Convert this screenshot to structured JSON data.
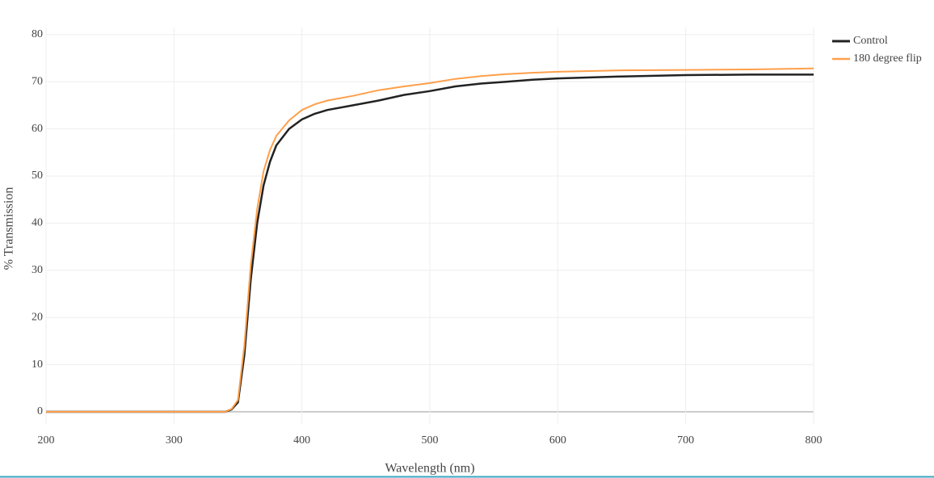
{
  "chart_data": {
    "type": "line",
    "x_label": "Wavelength (nm)",
    "y_label": "% Transmission",
    "x": [
      200,
      250,
      300,
      340,
      345,
      350,
      355,
      360,
      365,
      370,
      375,
      380,
      390,
      400,
      410,
      420,
      440,
      460,
      480,
      500,
      520,
      540,
      560,
      580,
      600,
      650,
      700,
      750,
      800
    ],
    "series": [
      {
        "name": "Control",
        "color": "#222222",
        "width": 2.5,
        "values": [
          0,
          0,
          0,
          0,
          0.5,
          2,
          12,
          28,
          40,
          48,
          53,
          56.5,
          60,
          62,
          63.2,
          64,
          65,
          66,
          67.2,
          68,
          69,
          69.6,
          70,
          70.4,
          70.7,
          71.1,
          71.4,
          71.5,
          71.5
        ]
      },
      {
        "name": "180 degree flip",
        "color": "#ff9f4a",
        "width": 2,
        "values": [
          0,
          0,
          0,
          0,
          0.6,
          2.5,
          14,
          31,
          43,
          51,
          55.5,
          58.5,
          61.8,
          64,
          65.2,
          66,
          67,
          68.2,
          69,
          69.7,
          70.6,
          71.2,
          71.6,
          71.9,
          72.1,
          72.4,
          72.5,
          72.6,
          72.8
        ]
      }
    ],
    "xlim": [
      200,
      800
    ],
    "xticks": [
      200,
      300,
      400,
      500,
      600,
      700,
      800
    ],
    "ylim": [
      -2.5,
      81.5
    ],
    "yticks": [
      0,
      10,
      20,
      30,
      40,
      50,
      60,
      70,
      80
    ],
    "grid": true,
    "legend": "top-right"
  }
}
